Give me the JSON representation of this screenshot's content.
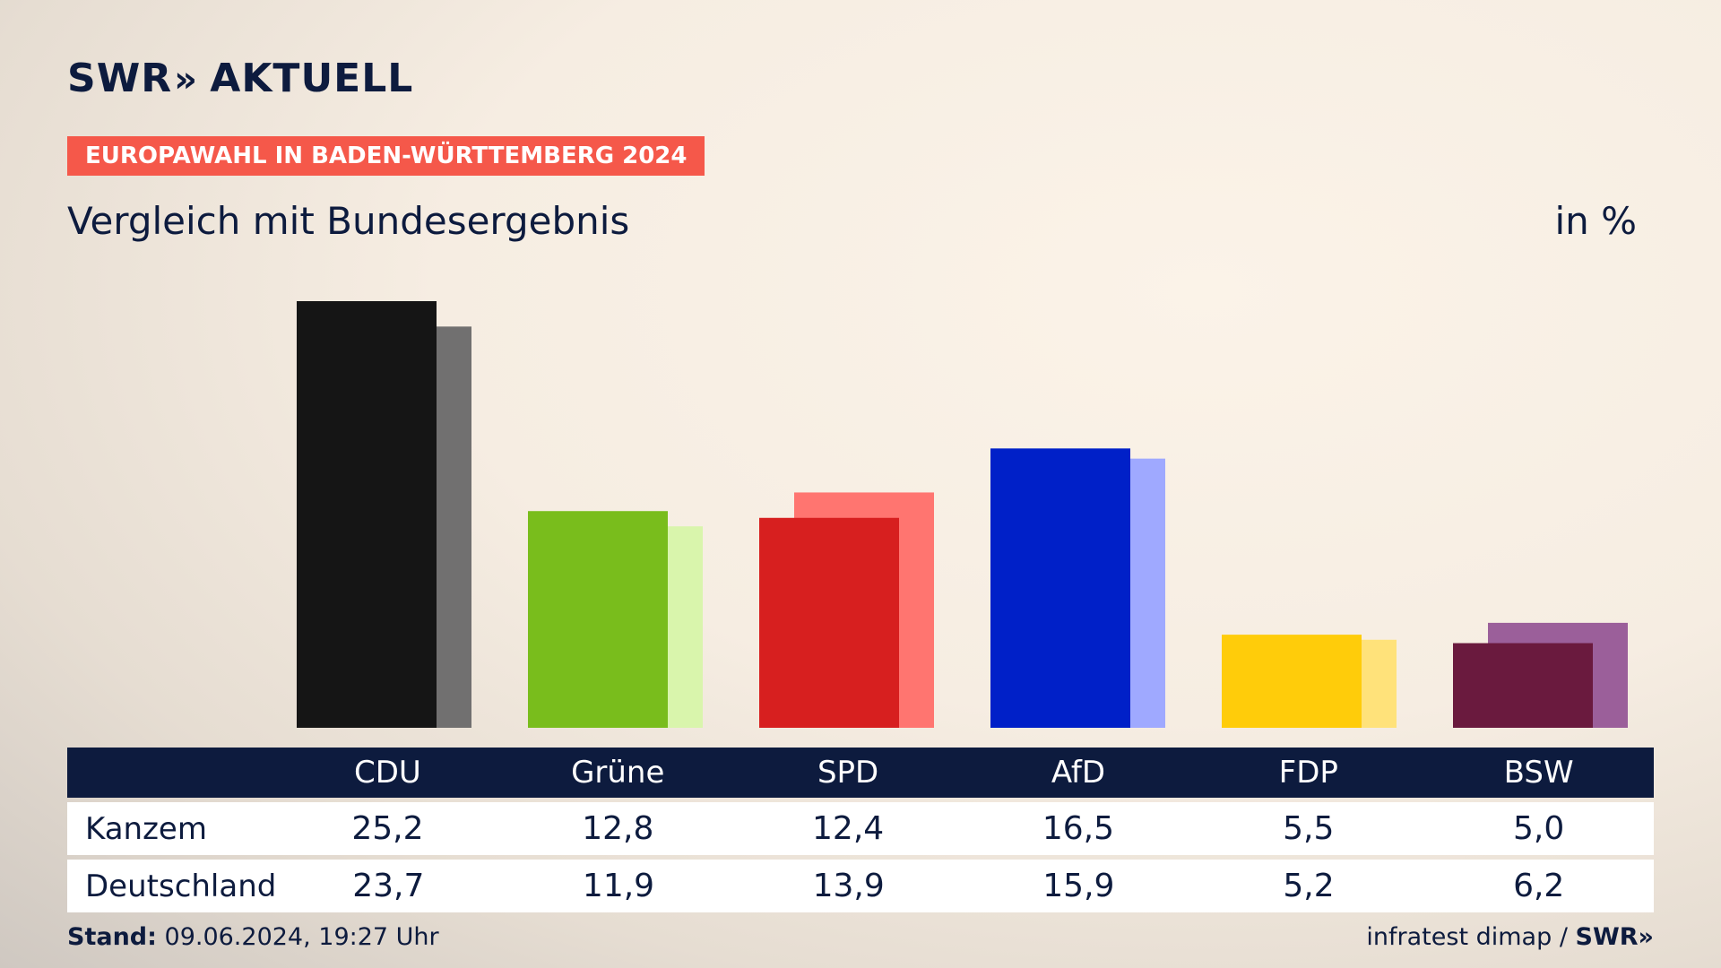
{
  "brand": {
    "name": "SWR",
    "arrows": "»",
    "product": "AKTUELL"
  },
  "header": {
    "badge": "EUROPAWAHL IN BADEN-WÜRTTEMBERG 2024",
    "subtitle": "Vergleich mit Bundesergebnis",
    "unit": "in %"
  },
  "chart_data": {
    "type": "bar",
    "categories": [
      "CDU",
      "Grüne",
      "SPD",
      "AfD",
      "FDP",
      "BSW"
    ],
    "series": [
      {
        "name": "Kanzem",
        "values": [
          25.2,
          12.8,
          12.4,
          16.5,
          5.5,
          5.0
        ],
        "colors": [
          "#151515",
          "#79bd1c",
          "#d71f1f",
          "#0020c8",
          "#ffcc0a",
          "#6a1a3e"
        ]
      },
      {
        "name": "Deutschland",
        "values": [
          23.7,
          11.9,
          13.9,
          15.9,
          5.2,
          6.2
        ],
        "colors": [
          "#717070",
          "#d9f5ac",
          "#ff7570",
          "#9fa9ff",
          "#ffe27a",
          "#9b5f9a"
        ]
      }
    ],
    "ylim": [
      0,
      25.2
    ],
    "display_values": {
      "Kanzem": [
        "25,2",
        "12,8",
        "12,4",
        "16,5",
        "5,5",
        "5,0"
      ],
      "Deutschland": [
        "23,7",
        "11,9",
        "13,9",
        "15,9",
        "5,2",
        "6,2"
      ]
    }
  },
  "footer": {
    "stand_label": "Stand:",
    "stand_value": "09.06.2024, 19:27 Uhr",
    "source": "infratest dimap /",
    "source_brand": "SWR»"
  }
}
